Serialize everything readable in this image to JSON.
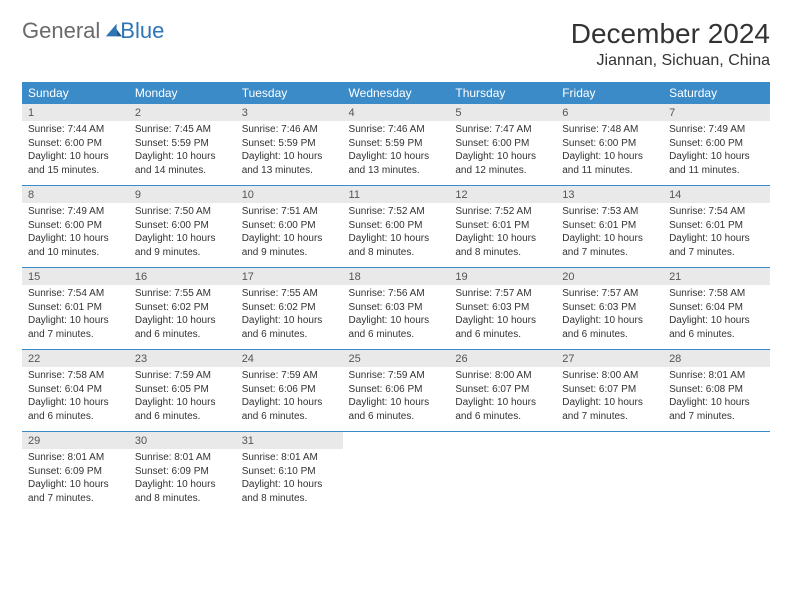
{
  "brand": {
    "word1": "General",
    "word2": "Blue",
    "accent_color": "#2e75b6"
  },
  "title": "December 2024",
  "location": "Jiannan, Sichuan, China",
  "colors": {
    "header_bg": "#3b8bc9",
    "header_text": "#ffffff",
    "daynum_bg": "#e9e9e9",
    "rule": "#3b8bc9",
    "body_text": "#333333"
  },
  "typography": {
    "title_fontsize": 28,
    "location_fontsize": 16,
    "dow_fontsize": 12,
    "daynum_fontsize": 11,
    "cell_fontsize": 10
  },
  "days_of_week": [
    "Sunday",
    "Monday",
    "Tuesday",
    "Wednesday",
    "Thursday",
    "Friday",
    "Saturday"
  ],
  "weeks": [
    [
      {
        "n": "1",
        "sunrise": "Sunrise: 7:44 AM",
        "sunset": "Sunset: 6:00 PM",
        "daylight": "Daylight: 10 hours and 15 minutes."
      },
      {
        "n": "2",
        "sunrise": "Sunrise: 7:45 AM",
        "sunset": "Sunset: 5:59 PM",
        "daylight": "Daylight: 10 hours and 14 minutes."
      },
      {
        "n": "3",
        "sunrise": "Sunrise: 7:46 AM",
        "sunset": "Sunset: 5:59 PM",
        "daylight": "Daylight: 10 hours and 13 minutes."
      },
      {
        "n": "4",
        "sunrise": "Sunrise: 7:46 AM",
        "sunset": "Sunset: 5:59 PM",
        "daylight": "Daylight: 10 hours and 13 minutes."
      },
      {
        "n": "5",
        "sunrise": "Sunrise: 7:47 AM",
        "sunset": "Sunset: 6:00 PM",
        "daylight": "Daylight: 10 hours and 12 minutes."
      },
      {
        "n": "6",
        "sunrise": "Sunrise: 7:48 AM",
        "sunset": "Sunset: 6:00 PM",
        "daylight": "Daylight: 10 hours and 11 minutes."
      },
      {
        "n": "7",
        "sunrise": "Sunrise: 7:49 AM",
        "sunset": "Sunset: 6:00 PM",
        "daylight": "Daylight: 10 hours and 11 minutes."
      }
    ],
    [
      {
        "n": "8",
        "sunrise": "Sunrise: 7:49 AM",
        "sunset": "Sunset: 6:00 PM",
        "daylight": "Daylight: 10 hours and 10 minutes."
      },
      {
        "n": "9",
        "sunrise": "Sunrise: 7:50 AM",
        "sunset": "Sunset: 6:00 PM",
        "daylight": "Daylight: 10 hours and 9 minutes."
      },
      {
        "n": "10",
        "sunrise": "Sunrise: 7:51 AM",
        "sunset": "Sunset: 6:00 PM",
        "daylight": "Daylight: 10 hours and 9 minutes."
      },
      {
        "n": "11",
        "sunrise": "Sunrise: 7:52 AM",
        "sunset": "Sunset: 6:00 PM",
        "daylight": "Daylight: 10 hours and 8 minutes."
      },
      {
        "n": "12",
        "sunrise": "Sunrise: 7:52 AM",
        "sunset": "Sunset: 6:01 PM",
        "daylight": "Daylight: 10 hours and 8 minutes."
      },
      {
        "n": "13",
        "sunrise": "Sunrise: 7:53 AM",
        "sunset": "Sunset: 6:01 PM",
        "daylight": "Daylight: 10 hours and 7 minutes."
      },
      {
        "n": "14",
        "sunrise": "Sunrise: 7:54 AM",
        "sunset": "Sunset: 6:01 PM",
        "daylight": "Daylight: 10 hours and 7 minutes."
      }
    ],
    [
      {
        "n": "15",
        "sunrise": "Sunrise: 7:54 AM",
        "sunset": "Sunset: 6:01 PM",
        "daylight": "Daylight: 10 hours and 7 minutes."
      },
      {
        "n": "16",
        "sunrise": "Sunrise: 7:55 AM",
        "sunset": "Sunset: 6:02 PM",
        "daylight": "Daylight: 10 hours and 6 minutes."
      },
      {
        "n": "17",
        "sunrise": "Sunrise: 7:55 AM",
        "sunset": "Sunset: 6:02 PM",
        "daylight": "Daylight: 10 hours and 6 minutes."
      },
      {
        "n": "18",
        "sunrise": "Sunrise: 7:56 AM",
        "sunset": "Sunset: 6:03 PM",
        "daylight": "Daylight: 10 hours and 6 minutes."
      },
      {
        "n": "19",
        "sunrise": "Sunrise: 7:57 AM",
        "sunset": "Sunset: 6:03 PM",
        "daylight": "Daylight: 10 hours and 6 minutes."
      },
      {
        "n": "20",
        "sunrise": "Sunrise: 7:57 AM",
        "sunset": "Sunset: 6:03 PM",
        "daylight": "Daylight: 10 hours and 6 minutes."
      },
      {
        "n": "21",
        "sunrise": "Sunrise: 7:58 AM",
        "sunset": "Sunset: 6:04 PM",
        "daylight": "Daylight: 10 hours and 6 minutes."
      }
    ],
    [
      {
        "n": "22",
        "sunrise": "Sunrise: 7:58 AM",
        "sunset": "Sunset: 6:04 PM",
        "daylight": "Daylight: 10 hours and 6 minutes."
      },
      {
        "n": "23",
        "sunrise": "Sunrise: 7:59 AM",
        "sunset": "Sunset: 6:05 PM",
        "daylight": "Daylight: 10 hours and 6 minutes."
      },
      {
        "n": "24",
        "sunrise": "Sunrise: 7:59 AM",
        "sunset": "Sunset: 6:06 PM",
        "daylight": "Daylight: 10 hours and 6 minutes."
      },
      {
        "n": "25",
        "sunrise": "Sunrise: 7:59 AM",
        "sunset": "Sunset: 6:06 PM",
        "daylight": "Daylight: 10 hours and 6 minutes."
      },
      {
        "n": "26",
        "sunrise": "Sunrise: 8:00 AM",
        "sunset": "Sunset: 6:07 PM",
        "daylight": "Daylight: 10 hours and 6 minutes."
      },
      {
        "n": "27",
        "sunrise": "Sunrise: 8:00 AM",
        "sunset": "Sunset: 6:07 PM",
        "daylight": "Daylight: 10 hours and 7 minutes."
      },
      {
        "n": "28",
        "sunrise": "Sunrise: 8:01 AM",
        "sunset": "Sunset: 6:08 PM",
        "daylight": "Daylight: 10 hours and 7 minutes."
      }
    ],
    [
      {
        "n": "29",
        "sunrise": "Sunrise: 8:01 AM",
        "sunset": "Sunset: 6:09 PM",
        "daylight": "Daylight: 10 hours and 7 minutes."
      },
      {
        "n": "30",
        "sunrise": "Sunrise: 8:01 AM",
        "sunset": "Sunset: 6:09 PM",
        "daylight": "Daylight: 10 hours and 8 minutes."
      },
      {
        "n": "31",
        "sunrise": "Sunrise: 8:01 AM",
        "sunset": "Sunset: 6:10 PM",
        "daylight": "Daylight: 10 hours and 8 minutes."
      },
      null,
      null,
      null,
      null
    ]
  ]
}
